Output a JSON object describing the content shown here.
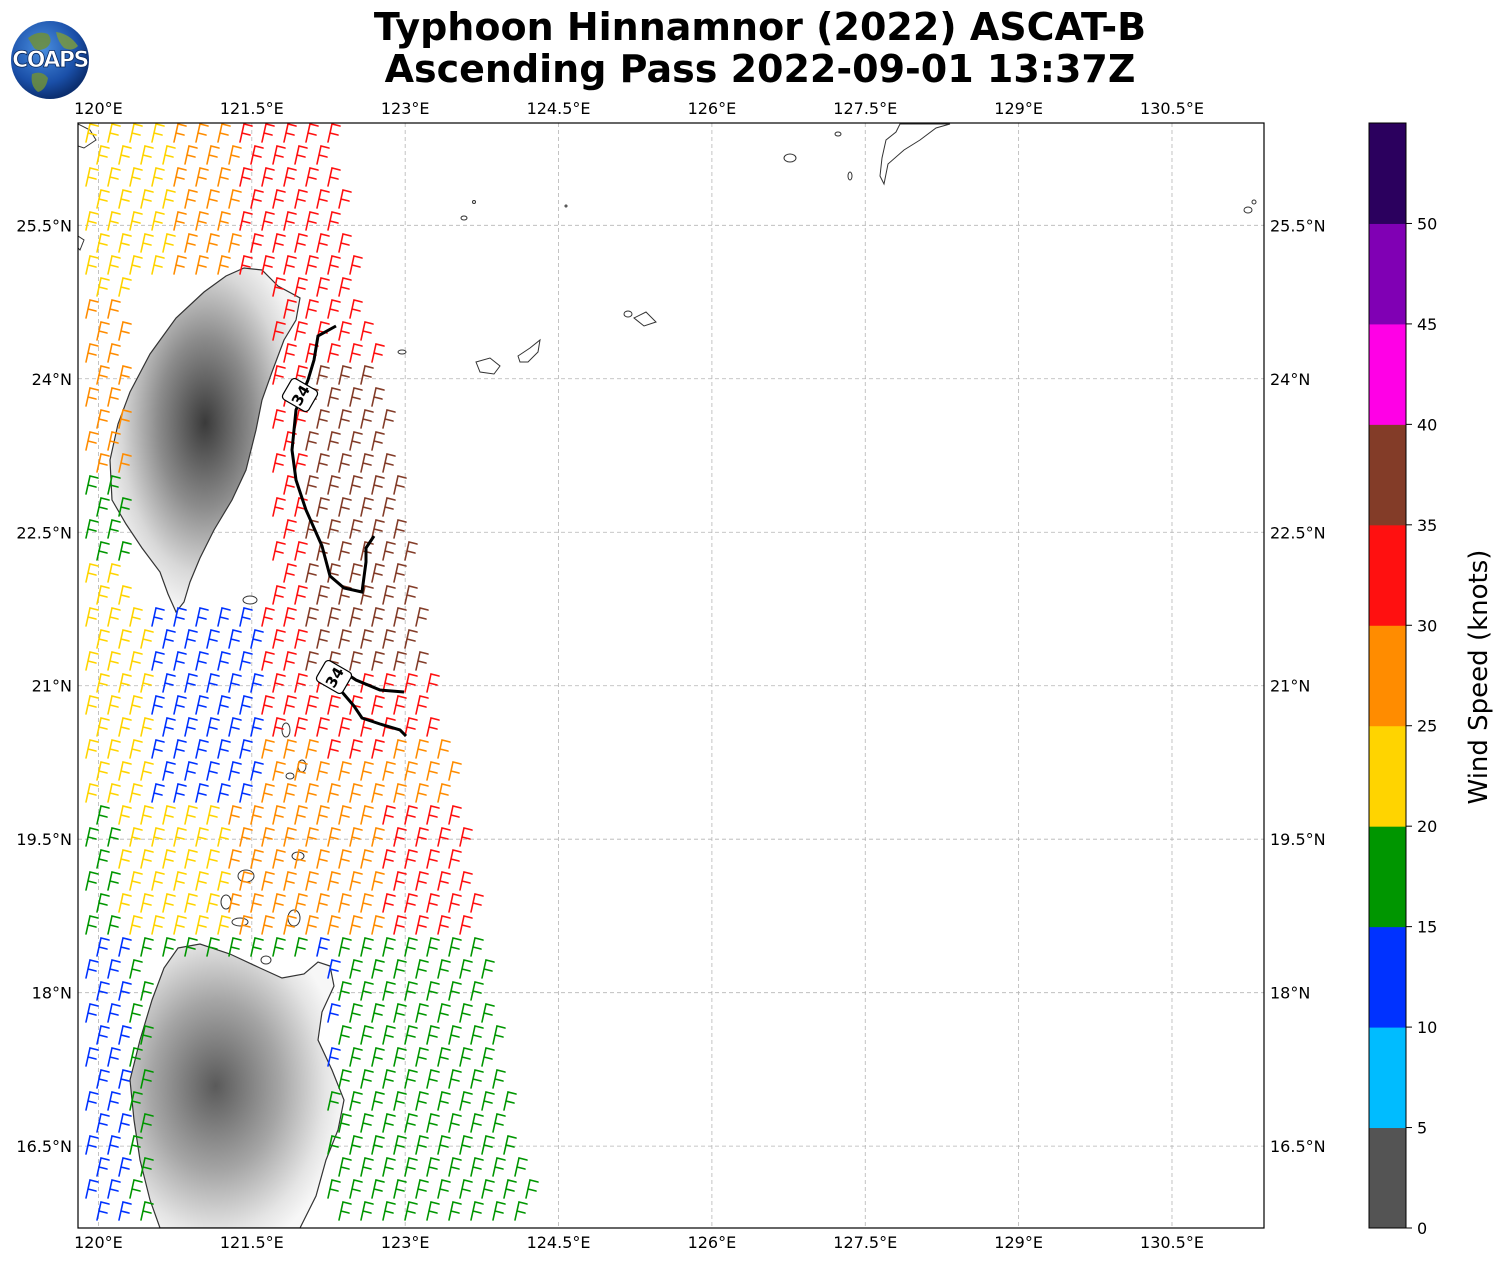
{
  "title": {
    "line1": "Typhoon Hinnamnor (2022) ASCAT-B",
    "line2": "Ascending Pass 2022-09-01 13:37Z"
  },
  "logo": {
    "text": "COAPS",
    "icon": "globe-icon"
  },
  "map": {
    "lon_range": [
      119.8,
      131.4
    ],
    "lat_range": [
      15.7,
      26.5
    ],
    "lon_ticks": [
      "120°E",
      "121.5°E",
      "123°E",
      "124.5°E",
      "126°E",
      "127.5°E",
      "129°E",
      "130.5°E"
    ],
    "lat_ticks": [
      "25.5°N",
      "24°N",
      "22.5°N",
      "21°N",
      "19.5°N",
      "18°N",
      "16.5°N"
    ],
    "gridlines": true,
    "contour_label": "34",
    "contour_labels": [
      "34",
      "34"
    ]
  },
  "colorbar": {
    "label": "Wind Speed (knots)",
    "ticks": [
      "0",
      "5",
      "10",
      "15",
      "20",
      "25",
      "30",
      "35",
      "40",
      "45",
      "50"
    ],
    "colors": [
      "#545454",
      "#00bcff",
      "#0032ff",
      "#009600",
      "#ffd400",
      "#ff8c00",
      "#ff1010",
      "#833c28",
      "#ff00e6",
      "#8000b4",
      "#2b005e"
    ]
  }
}
